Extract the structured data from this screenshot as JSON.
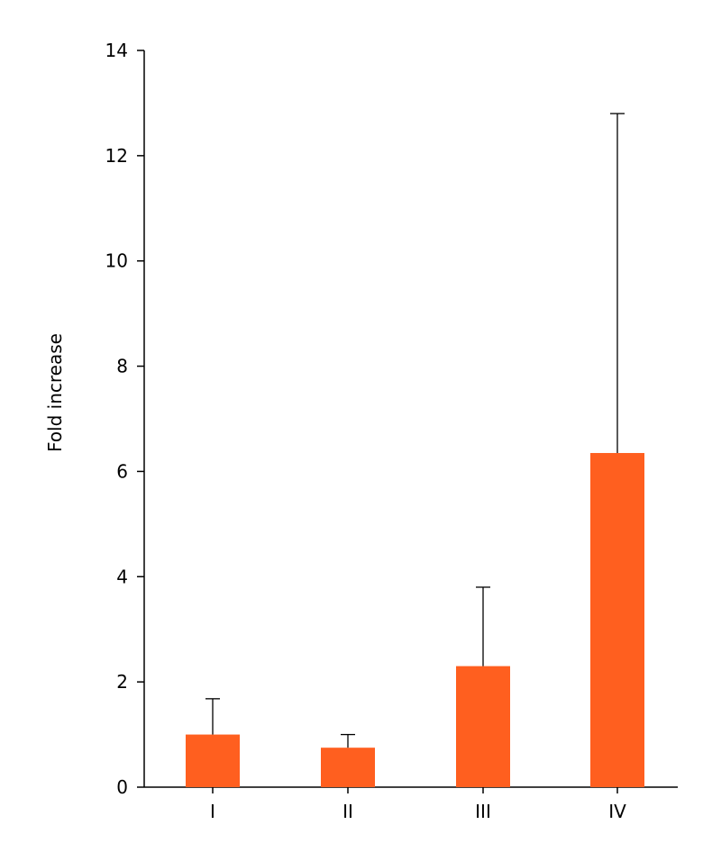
{
  "chart_data": {
    "type": "bar",
    "title": "",
    "xlabel": "",
    "ylabel": "Fold increase",
    "categories": [
      "I",
      "II",
      "III",
      "IV"
    ],
    "series": [
      {
        "values": [
          1.0,
          0.75,
          2.3,
          6.35
        ],
        "error_upper": [
          1.68,
          1.0,
          3.8,
          12.8
        ]
      }
    ],
    "ylim": [
      0,
      14
    ],
    "yticks": [
      0,
      2,
      4,
      6,
      8,
      10,
      12,
      14
    ],
    "grid": false,
    "legend": "none",
    "bar_color": "#ff5f1f"
  }
}
